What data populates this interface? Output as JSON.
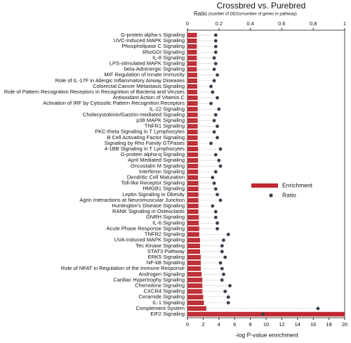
{
  "chart_data": {
    "type": "bar",
    "orientation": "horizontal",
    "title": "Crossbred vs. Purebred",
    "x_label": "-log P-value enrichment",
    "x2_label": "Ratio",
    "x2_label_note": "(number of DEGs/number of genes in pathway)",
    "categories": [
      "G-protein alpha-s Signaling",
      "UVC-Induced MAPK Signaling",
      "Phospholipase C Signaling",
      "RhoGDI Signaling",
      "IL-8 Signaling",
      "LPS-stimulated MAPK Signaling",
      "beta-Adrenergic Signaling",
      "MIF Regulation of Innate Immunity",
      "Role of IL-17F in Allergic Inflammatory Airway Diseases",
      "Colorectal Cancer Metastasis Signaling",
      "Role of Pattern Recognition Receptors in Recognition of Bacteria and Viruses",
      "Antioxidant Action of Vitamin C",
      "Activation of IRF by Cytosolic Pattern Recognition Receptors",
      "IL-22 Signaling",
      "Cholecystokinin/Gastrin-mediated Signaling",
      "p38 MAPK Signaling",
      "TNFR1 Signaling",
      "PKC-theta Signaling in T Lymphocytes",
      "B Cell Activating Factor Signaling",
      "Signaling by Rho Family GTPases",
      "4-1BB Signaling in T Lymphocytes",
      "G-protein alpha-q Signaling",
      "April Mediated Signaling",
      "Oncostatin M Signaling",
      "Interferon Signaling",
      "Dendritic Cell Maturation",
      "Toll-like Receptor Signaling",
      "HMGB1 Signaling",
      "Leptin Signaling in Obesity",
      "Agrin Interactions at Neuromuscular Junction",
      "Huntington's Disease Signaling",
      "RANK Signaling in Osteoclasts",
      "GNRH Signaling",
      "IL-6 Signaling",
      "Acute Phase Response Signaling",
      "TNFR2 Signaling",
      "UVA-Induced MAPK Signaling",
      "Tec Kinase Signaling",
      "STAT3 Pathway",
      "ERK5 Signaling",
      "NF-kB Signaling",
      "Role of NFAT in Regulation of the Immune Response",
      "Androgen Signaling",
      "Cardiac Hypertrophy Signaling",
      "Chemokine Signaling",
      "CXCR4 Signaling",
      "Ceramide Signaling",
      "IL-1 Signaling",
      "Complement System",
      "EIF2 Signaling"
    ],
    "series": [
      {
        "name": "Enrichment",
        "color": "#c0282f",
        "values": [
          1.2,
          1.2,
          1.2,
          1.2,
          1.2,
          1.2,
          1.2,
          1.25,
          1.25,
          1.25,
          1.25,
          1.3,
          1.3,
          1.3,
          1.3,
          1.3,
          1.3,
          1.3,
          1.3,
          1.3,
          1.35,
          1.35,
          1.35,
          1.35,
          1.35,
          1.35,
          1.4,
          1.4,
          1.4,
          1.4,
          1.4,
          1.4,
          1.45,
          1.45,
          1.5,
          1.5,
          1.6,
          1.6,
          1.6,
          1.7,
          1.7,
          1.7,
          1.8,
          1.9,
          1.9,
          1.9,
          2.0,
          2.1,
          2.4,
          20
        ]
      },
      {
        "name": "Ratio",
        "color": "#3a3f4d",
        "axis": "x2",
        "values": [
          0.18,
          0.18,
          0.18,
          0.18,
          0.17,
          0.18,
          0.17,
          0.19,
          0.17,
          0.15,
          0.16,
          0.19,
          0.15,
          0.2,
          0.18,
          0.17,
          0.19,
          0.17,
          0.19,
          0.15,
          0.21,
          0.18,
          0.2,
          0.21,
          0.18,
          0.16,
          0.17,
          0.18,
          0.19,
          0.21,
          0.16,
          0.18,
          0.18,
          0.19,
          0.19,
          0.26,
          0.23,
          0.22,
          0.22,
          0.24,
          0.21,
          0.22,
          0.23,
          0.22,
          0.27,
          0.24,
          0.26,
          0.26,
          0.83,
          0.48
        ]
      }
    ],
    "xlim": [
      0,
      20
    ],
    "xticks": [
      0,
      2,
      4,
      6,
      8,
      10,
      12,
      14,
      16,
      18,
      20
    ],
    "x2lim": [
      0,
      1
    ],
    "x2ticks": [
      0,
      0.2,
      0.4,
      0.6,
      0.8,
      1
    ],
    "legend": "right"
  }
}
